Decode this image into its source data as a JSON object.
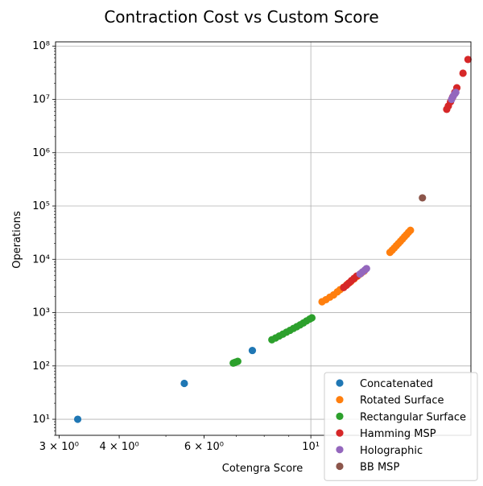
{
  "chart_data": {
    "type": "scatter",
    "title": "Contraction Cost vs Custom Score",
    "xlabel": "Cotengra Score",
    "ylabel": "Operations",
    "xscale": "log",
    "yscale": "log",
    "xlim": [
      2.95,
      21.5
    ],
    "ylim": [
      5,
      120000000
    ],
    "grid": "major",
    "legend_position": "lower-right",
    "x_ticks": [
      {
        "value": 3,
        "label": "3 × 10⁰"
      },
      {
        "value": 4,
        "label": "4 × 10⁰"
      },
      {
        "value": 6,
        "label": "6 × 10⁰"
      },
      {
        "value": 10,
        "label": "10¹"
      }
    ],
    "x_gridlines": [
      10
    ],
    "x_minor_ticks": [
      3,
      4,
      5,
      6,
      7,
      8,
      9
    ],
    "y_ticks": [
      {
        "value": 10,
        "label": "10¹"
      },
      {
        "value": 100,
        "label": "10²"
      },
      {
        "value": 1000,
        "label": "10³"
      },
      {
        "value": 10000,
        "label": "10⁴"
      },
      {
        "value": 100000,
        "label": "10⁵"
      },
      {
        "value": 1000000,
        "label": "10⁶"
      },
      {
        "value": 10000000,
        "label": "10⁷"
      },
      {
        "value": 100000000,
        "label": "10⁸"
      }
    ],
    "series": [
      {
        "name": "Concatenated",
        "color": "#1f77b4",
        "points": [
          [
            3.28,
            10
          ],
          [
            5.46,
            47
          ],
          [
            7.56,
            195
          ]
        ]
      },
      {
        "name": "Rotated Surface",
        "color": "#ff7f0e",
        "points": [
          [
            10.55,
            1600
          ],
          [
            10.75,
            1750
          ],
          [
            10.95,
            1950
          ],
          [
            11.15,
            2150
          ],
          [
            11.35,
            2450
          ],
          [
            11.5,
            2700
          ],
          [
            11.7,
            3000
          ],
          [
            11.9,
            3400
          ],
          [
            12.1,
            3800
          ],
          [
            12.3,
            4300
          ],
          [
            12.5,
            4850
          ],
          [
            12.7,
            5400
          ],
          [
            12.9,
            6000
          ],
          [
            14.6,
            13500
          ],
          [
            14.75,
            14800
          ],
          [
            14.9,
            16300
          ],
          [
            15.05,
            18000
          ],
          [
            15.2,
            19800
          ],
          [
            15.35,
            21800
          ],
          [
            15.5,
            24000
          ],
          [
            15.65,
            26500
          ],
          [
            15.8,
            29000
          ],
          [
            15.95,
            32000
          ],
          [
            16.1,
            35000
          ]
        ]
      },
      {
        "name": "Rectangular Surface",
        "color": "#2ca02c",
        "points": [
          [
            6.9,
            113
          ],
          [
            6.95,
            116
          ],
          [
            7.0,
            119
          ],
          [
            7.05,
            122
          ],
          [
            8.3,
            310
          ],
          [
            8.45,
            335
          ],
          [
            8.6,
            365
          ],
          [
            8.75,
            395
          ],
          [
            8.9,
            430
          ],
          [
            9.05,
            465
          ],
          [
            9.2,
            505
          ],
          [
            9.35,
            545
          ],
          [
            9.5,
            590
          ],
          [
            9.65,
            640
          ],
          [
            9.8,
            700
          ],
          [
            9.95,
            760
          ],
          [
            10.05,
            800
          ]
        ]
      },
      {
        "name": "Hamming MSP",
        "color": "#d62728",
        "points": [
          [
            11.7,
            2950
          ],
          [
            11.85,
            3250
          ],
          [
            12.0,
            3600
          ],
          [
            12.15,
            4000
          ],
          [
            12.3,
            4400
          ],
          [
            12.45,
            4850
          ],
          [
            19.15,
            6500000
          ],
          [
            19.3,
            7500000
          ],
          [
            19.5,
            9000000
          ],
          [
            19.7,
            11000000
          ],
          [
            19.9,
            13500000
          ],
          [
            20.1,
            16500000
          ],
          [
            20.7,
            31000000
          ],
          [
            21.2,
            56000000
          ]
        ]
      },
      {
        "name": "Holographic",
        "color": "#9467bd",
        "points": [
          [
            12.65,
            5300
          ],
          [
            12.8,
            5800
          ],
          [
            12.95,
            6300
          ],
          [
            13.05,
            6700
          ],
          [
            19.6,
            10000000
          ],
          [
            19.75,
            11500000
          ],
          [
            19.9,
            12700000
          ],
          [
            20.0,
            13500000
          ]
        ]
      },
      {
        "name": "BB MSP",
        "color": "#8c564b",
        "points": [
          [
            17.05,
            142000
          ]
        ]
      }
    ]
  }
}
